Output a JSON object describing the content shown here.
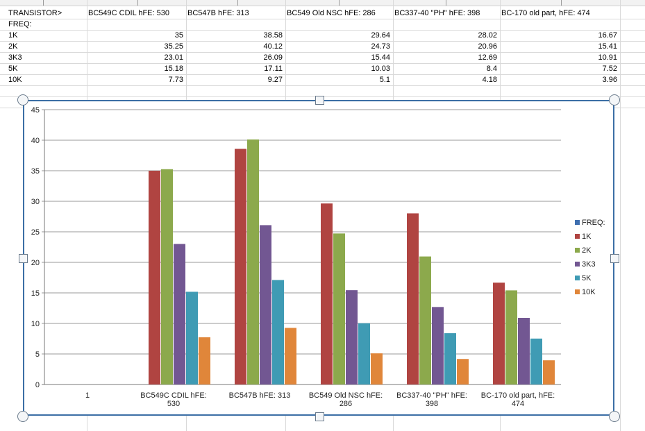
{
  "sheet": {
    "header_row": [
      "TRANSISTOR>",
      "BC549C CDIL hFE: 530",
      "BC547B hFE: 313",
      "BC549  Old NSC hFE: 286",
      "BC337-40 \"PH\" hFE: 398",
      "BC-170 old part, hFE: 474"
    ],
    "freq_label": "FREQ:",
    "rows": [
      {
        "label": "1K",
        "values": [
          "35",
          "38.58",
          "29.64",
          "28.02",
          "16.67"
        ]
      },
      {
        "label": "2K",
        "values": [
          "35.25",
          "40.12",
          "24.73",
          "20.96",
          "15.41"
        ]
      },
      {
        "label": "3K3",
        "values": [
          "23.01",
          "26.09",
          "15.44",
          "12.69",
          "10.91"
        ]
      },
      {
        "label": "5K",
        "values": [
          "15.18",
          "17.11",
          "10.03",
          "8.4",
          "7.52"
        ]
      },
      {
        "label": "10K",
        "values": [
          "7.73",
          "9.27",
          "5.1",
          "4.18",
          "3.96"
        ]
      }
    ]
  },
  "chart_data": {
    "type": "bar",
    "categories": [
      "1",
      "BC549C CDIL hFE: 530",
      "BC547B hFE: 313",
      "BC549  Old NSC hFE: 286",
      "BC337-40 \"PH\" hFE: 398",
      "BC-170 old part, hFE: 474"
    ],
    "category_lines": [
      [
        "1"
      ],
      [
        "BC549C CDIL hFE:",
        "530"
      ],
      [
        "BC547B hFE: 313"
      ],
      [
        "BC549  Old NSC hFE:",
        "286"
      ],
      [
        "BC337-40 \"PH\" hFE:",
        "398"
      ],
      [
        "BC-170 old part, hFE:",
        "474"
      ]
    ],
    "series": [
      {
        "name": "FREQ:",
        "color": "#3f6fb0",
        "values": [
          null,
          null,
          null,
          null,
          null,
          null
        ]
      },
      {
        "name": "1K",
        "color": "#b04441",
        "values": [
          null,
          35,
          38.58,
          29.64,
          28.02,
          16.67
        ]
      },
      {
        "name": "2K",
        "color": "#8ca94c",
        "values": [
          null,
          35.25,
          40.12,
          24.73,
          20.96,
          15.41
        ]
      },
      {
        "name": "3K3",
        "color": "#725792",
        "values": [
          null,
          23.01,
          26.09,
          15.44,
          12.69,
          10.91
        ]
      },
      {
        "name": "5K",
        "color": "#3f9bb4",
        "values": [
          null,
          15.18,
          17.11,
          10.03,
          8.4,
          7.52
        ]
      },
      {
        "name": "10K",
        "color": "#e0863a",
        "values": [
          null,
          7.73,
          9.27,
          5.1,
          4.18,
          3.96
        ]
      }
    ],
    "ylim": [
      0,
      45
    ],
    "yticks": [
      "0",
      "5",
      "10",
      "15",
      "20",
      "25",
      "30",
      "35",
      "40",
      "45"
    ],
    "grid": true,
    "legend": "right"
  }
}
